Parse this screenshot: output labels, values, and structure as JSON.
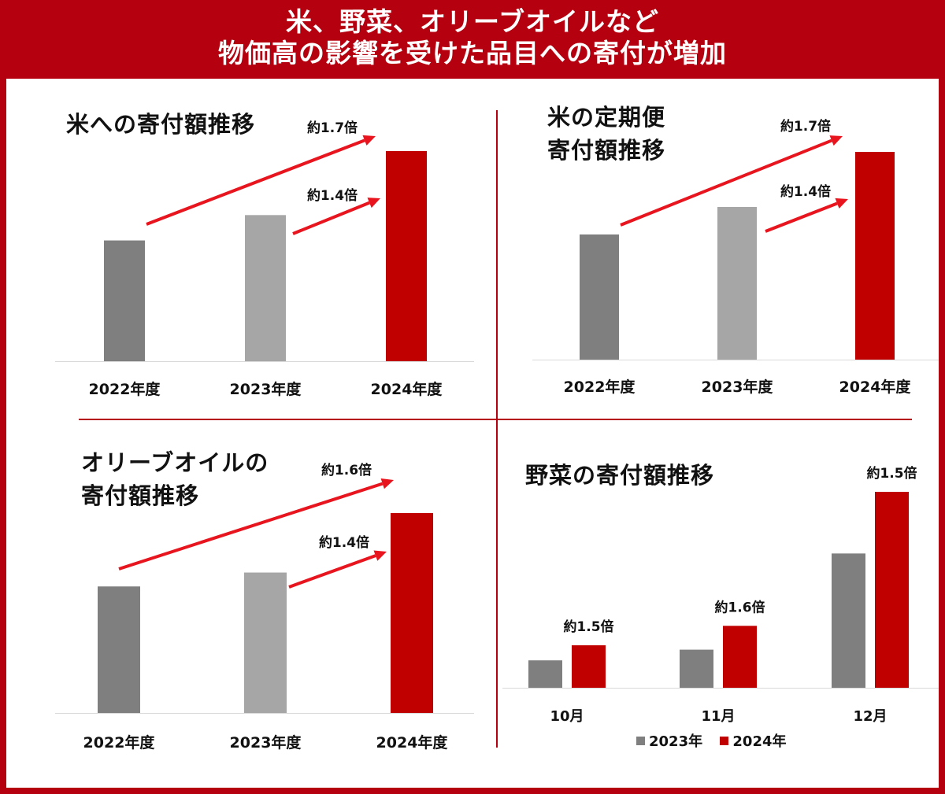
{
  "header": {
    "line1": "米、野菜、オリーブオイルなど",
    "line2": "物価高の影響を受けた品目への寄付が増加"
  },
  "colors": {
    "brand_red": "#b5000f",
    "bar_dark_gray": "#7f7f7f",
    "bar_light_gray": "#a6a6a6",
    "bar_red": "#c00000",
    "arrow_red": "#e8141e"
  },
  "chart_data": [
    {
      "type": "bar",
      "title_lines": [
        "米への寄付額推移"
      ],
      "categories": [
        "2022年度",
        "2023年度",
        "2024年度"
      ],
      "values": [
        1.0,
        1.21,
        1.74
      ],
      "ylim": [
        0,
        1.8
      ],
      "grid": false,
      "annotations": [
        {
          "label": "約1.7倍",
          "from": "2022年度",
          "to": "2024年度"
        },
        {
          "label": "約1.4倍",
          "from": "2023年度",
          "to": "2024年度"
        }
      ]
    },
    {
      "type": "bar",
      "title_lines": [
        "米の定期便",
        "寄付額推移"
      ],
      "categories": [
        "2022年度",
        "2023年度",
        "2024年度"
      ],
      "values": [
        1.0,
        1.22,
        1.66
      ],
      "ylim": [
        0,
        1.8
      ],
      "grid": false,
      "annotations": [
        {
          "label": "約1.7倍",
          "from": "2022年度",
          "to": "2024年度"
        },
        {
          "label": "約1.4倍",
          "from": "2023年度",
          "to": "2024年度"
        }
      ]
    },
    {
      "type": "bar",
      "title_lines": [
        "オリーブオイルの",
        "寄付額推移"
      ],
      "categories": [
        "2022年度",
        "2023年度",
        "2024年度"
      ],
      "values": [
        1.0,
        1.11,
        1.58
      ],
      "ylim": [
        0,
        1.8
      ],
      "grid": false,
      "annotations": [
        {
          "label": "約1.6倍",
          "from": "2022年度",
          "to": "2024年度"
        },
        {
          "label": "約1.4倍",
          "from": "2023年度",
          "to": "2024年度"
        }
      ]
    },
    {
      "type": "bar",
      "title_lines": [
        "野菜の寄付額推移"
      ],
      "categories": [
        "10月",
        "11月",
        "12月"
      ],
      "series": [
        {
          "name": "2023年",
          "values": [
            1.0,
            1.39,
            4.9
          ]
        },
        {
          "name": "2024年",
          "values": [
            1.55,
            2.26,
            7.15
          ]
        }
      ],
      "ylim": [
        0,
        7.3
      ],
      "grid": false,
      "legend": "bottom",
      "annotations": [
        {
          "label": "約1.5倍",
          "category": "10月"
        },
        {
          "label": "約1.6倍",
          "category": "11月"
        },
        {
          "label": "約1.5倍",
          "category": "12月"
        }
      ]
    }
  ]
}
